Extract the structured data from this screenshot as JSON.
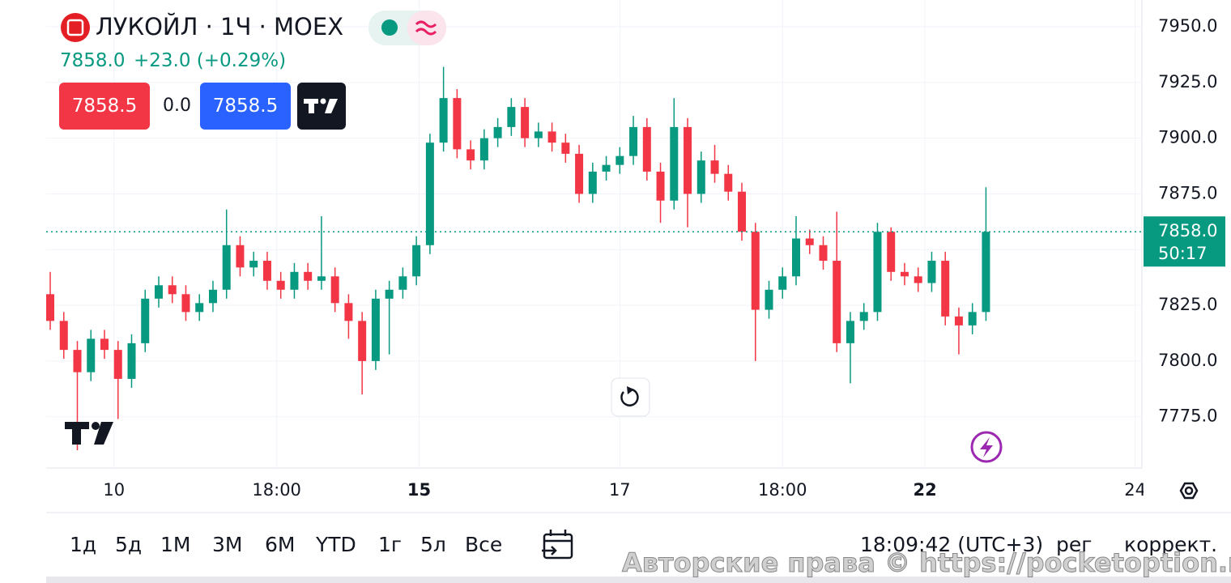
{
  "chart_data": {
    "type": "candlestick",
    "title": "ЛУКОЙЛ · 1Ч · MOEX",
    "change": "+23.0 (+0.29%)",
    "up_color": "#089981",
    "down_color": "#f23645",
    "open": [
      7830,
      7818,
      7805,
      7795,
      7810,
      7805,
      7792,
      7808,
      7828,
      7834,
      7830,
      7822,
      7826,
      7832,
      7852,
      7842,
      7845,
      7836,
      7832,
      7840,
      7836,
      7838,
      7826,
      7818,
      7800,
      7828,
      7832,
      7838,
      7852,
      7898,
      7918,
      7895,
      7890,
      7900,
      7905,
      7914,
      7900,
      7903,
      7898,
      7893,
      7875,
      7885,
      7888,
      7892,
      7905,
      7885,
      7872,
      7905,
      7875,
      7890,
      7884,
      7876,
      7858,
      7823,
      7832,
      7838,
      7855,
      7852,
      7845,
      7808,
      7818,
      7822,
      7858,
      7840,
      7838,
      7835,
      7845,
      7820,
      7816,
      7822
    ],
    "high": [
      7840,
      7822,
      7809,
      7814,
      7814,
      7809,
      7812,
      7832,
      7838,
      7838,
      7834,
      7830,
      7836,
      7868,
      7856,
      7849,
      7849,
      7840,
      7844,
      7844,
      7865,
      7842,
      7830,
      7822,
      7832,
      7836,
      7842,
      7856,
      7902,
      7932,
      7922,
      7899,
      7904,
      7909,
      7918,
      7918,
      7907,
      7907,
      7902,
      7897,
      7889,
      7892,
      7896,
      7910,
      7909,
      7889,
      7918,
      7909,
      7894,
      7897,
      7888,
      7880,
      7862,
      7836,
      7842,
      7865,
      7859,
      7856,
      7867,
      7822,
      7826,
      7862,
      7860,
      7844,
      7842,
      7849,
      7849,
      7824,
      7826,
      7878
    ],
    "low": [
      7814,
      7801,
      7760,
      7791,
      7801,
      7774,
      7788,
      7804,
      7824,
      7826,
      7818,
      7818,
      7822,
      7828,
      7838,
      7838,
      7832,
      7828,
      7828,
      7832,
      7832,
      7822,
      7810,
      7785,
      7796,
      7803,
      7828,
      7834,
      7848,
      7894,
      7891,
      7886,
      7886,
      7896,
      7901,
      7896,
      7896,
      7894,
      7889,
      7871,
      7871,
      7881,
      7884,
      7888,
      7881,
      7862,
      7868,
      7860,
      7871,
      7880,
      7872,
      7854,
      7800,
      7819,
      7828,
      7834,
      7848,
      7841,
      7804,
      7790,
      7814,
      7818,
      7836,
      7834,
      7831,
      7831,
      7816,
      7803,
      7812,
      7818
    ],
    "close": [
      7818,
      7805,
      7795,
      7810,
      7805,
      7792,
      7808,
      7828,
      7834,
      7830,
      7822,
      7826,
      7832,
      7852,
      7842,
      7845,
      7836,
      7832,
      7840,
      7836,
      7838,
      7826,
      7818,
      7800,
      7828,
      7832,
      7838,
      7852,
      7898,
      7918,
      7895,
      7890,
      7900,
      7905,
      7914,
      7900,
      7903,
      7898,
      7893,
      7875,
      7885,
      7888,
      7892,
      7905,
      7885,
      7872,
      7905,
      7875,
      7890,
      7884,
      7876,
      7858,
      7823,
      7832,
      7838,
      7855,
      7852,
      7845,
      7808,
      7818,
      7822,
      7858,
      7840,
      7838,
      7835,
      7845,
      7820,
      7816,
      7822,
      7858
    ],
    "ylim": [
      7752,
      7962
    ],
    "yticks": [
      {
        "value": 7775,
        "label": "7775.0"
      },
      {
        "value": 7800,
        "label": "7800.0"
      },
      {
        "value": 7825,
        "label": "7825.0"
      },
      {
        "value": 7850,
        "label": "7850.0"
      },
      {
        "value": 7875,
        "label": "7875.0"
      },
      {
        "value": 7900,
        "label": "7900.0"
      },
      {
        "value": 7925,
        "label": "7925.0"
      },
      {
        "value": 7950,
        "label": "7950.0"
      }
    ],
    "xlim": [
      -0.3,
      80.5
    ],
    "xticks": [
      {
        "value": 4.7,
        "label": "10"
      },
      {
        "value": 16.7,
        "label": "18:00"
      },
      {
        "value": 27.2,
        "label": "15"
      },
      {
        "value": 42,
        "label": "17"
      },
      {
        "value": 54,
        "label": "18:00"
      },
      {
        "value": 64.5,
        "label": "22"
      },
      {
        "value": 80,
        "label": "24"
      }
    ],
    "last_price": {
      "value": 7858,
      "label": "7858.0"
    },
    "countdown": "50:17"
  },
  "ui": {
    "bid": "7858.5",
    "spread": "0.0",
    "ask": "7858.5",
    "ranges": [
      "1д",
      "5д",
      "1М",
      "3М",
      "6М",
      "YTD",
      "1г",
      "5л",
      "Все"
    ],
    "clock": "18:09:42 (UTC+3)",
    "session": "рег",
    "adjust": "коррект.",
    "watermark": "Авторские права © https://pocketoption.ru"
  }
}
